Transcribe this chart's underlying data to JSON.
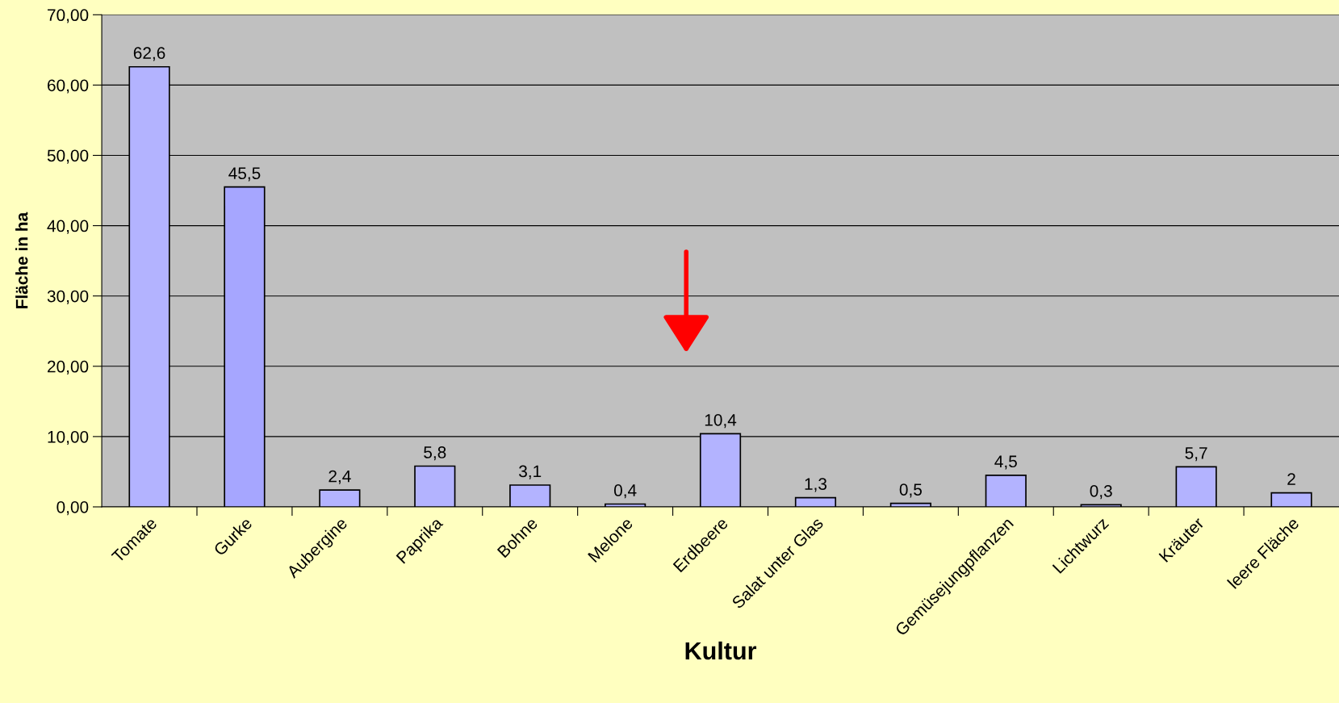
{
  "chart_data": {
    "type": "bar",
    "xlabel": "Kultur",
    "ylabel": "Fläche in ha",
    "categories": [
      "Tomate",
      "Gurke",
      "Aubergine",
      "Paprika",
      "Bohne",
      "Melone",
      "Erdbeere",
      "Salat unter Glas",
      null,
      "Gemüsejungpflanzen",
      "Lichtwurz",
      "Kräuter",
      "leere Fläche"
    ],
    "values": [
      62.6,
      45.5,
      2.4,
      5.8,
      3.1,
      0.4,
      10.4,
      1.3,
      0.5,
      4.5,
      0.3,
      5.7,
      2
    ],
    "colors": [
      "#b3b3ff",
      "#a6a6ff",
      "#b3b3ff",
      "#b3b3ff",
      "#b3b3ff",
      "#b3b3ff",
      "#b3b3ff",
      "#b3b3ff",
      "#b3b3ff",
      "#b3b3ff",
      "#b3b3ff",
      "#b3b3ff",
      "#b3b3ff"
    ],
    "value_labels": [
      "62,6",
      "45,5",
      "2,4",
      "5,8",
      "3,1",
      "0,4",
      "10,4",
      "1,3",
      "0,5",
      "4,5",
      "0,3",
      "5,7",
      "2"
    ],
    "ylim": [
      0,
      70
    ],
    "yticks": [
      {
        "value": 0,
        "label": "0,00"
      },
      {
        "value": 10,
        "label": "10,00"
      },
      {
        "value": 20,
        "label": "20,00"
      },
      {
        "value": 30,
        "label": "30,00"
      },
      {
        "value": 40,
        "label": "40,00"
      },
      {
        "value": 50,
        "label": "50,00"
      },
      {
        "value": 60,
        "label": "60,00"
      },
      {
        "value": 70,
        "label": "70,00"
      }
    ],
    "grid": "y"
  }
}
